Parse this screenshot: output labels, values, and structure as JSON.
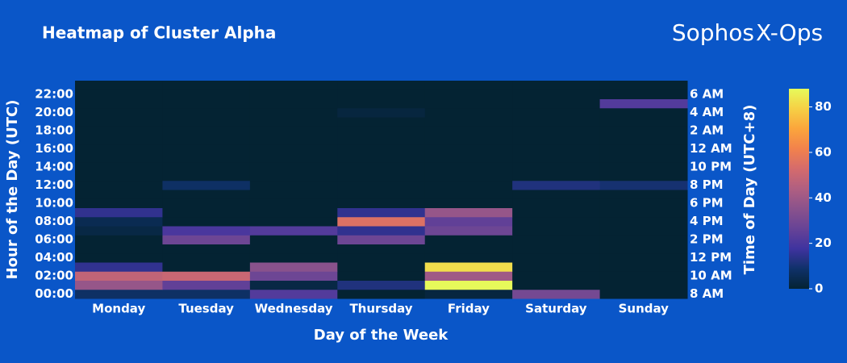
{
  "chart_data": {
    "type": "heatmap",
    "title": "Heatmap of Cluster Alpha",
    "logo": "Sophos",
    "logo_mark": "X-Ops",
    "x_label": "Day of the Week",
    "y_label": "Hour of the Day (UTC)",
    "y2_label": "Time of Day (UTC+8)",
    "categories": [
      "Monday",
      "Tuesday",
      "Wednesday",
      "Thursday",
      "Friday",
      "Saturday",
      "Sunday"
    ],
    "y": [
      0,
      1,
      2,
      3,
      4,
      5,
      6,
      7,
      8,
      9,
      10,
      11,
      12,
      13,
      14,
      15,
      16,
      17,
      18,
      19,
      20,
      21,
      22,
      23
    ],
    "z": [
      [
        8,
        8,
        22,
        0,
        2,
        30,
        0
      ],
      [
        38,
        25,
        3,
        12,
        88,
        0,
        0
      ],
      [
        48,
        50,
        28,
        0,
        40,
        0,
        0
      ],
      [
        15,
        0,
        35,
        0,
        82,
        0,
        0
      ],
      [
        0,
        0,
        0,
        0,
        0,
        0,
        0
      ],
      [
        0,
        0,
        0,
        0,
        0,
        0,
        0
      ],
      [
        0,
        28,
        0,
        28,
        0,
        0,
        0
      ],
      [
        3,
        20,
        22,
        15,
        28,
        0,
        0
      ],
      [
        5,
        0,
        0,
        55,
        25,
        0,
        0
      ],
      [
        15,
        0,
        0,
        15,
        38,
        0,
        0
      ],
      [
        0,
        0,
        0,
        0,
        0,
        0,
        0
      ],
      [
        0,
        0,
        0,
        0,
        0,
        0,
        0
      ],
      [
        0,
        8,
        0,
        0,
        0,
        12,
        10
      ],
      [
        0,
        0,
        0,
        0,
        0,
        0,
        0
      ],
      [
        0,
        0,
        0,
        0,
        0,
        0,
        0
      ],
      [
        0,
        0,
        0,
        0,
        0,
        0,
        0
      ],
      [
        0,
        0,
        0,
        0,
        0,
        0,
        0
      ],
      [
        0,
        0,
        0,
        0,
        0,
        0,
        0
      ],
      [
        0,
        0,
        0,
        0,
        0,
        0,
        0
      ],
      [
        0,
        0,
        0,
        0,
        0,
        0,
        0
      ],
      [
        0,
        0,
        0,
        2,
        0,
        0,
        0
      ],
      [
        0,
        0,
        0,
        0,
        0,
        0,
        22
      ],
      [
        0,
        0,
        0,
        0,
        0,
        0,
        0
      ],
      [
        0,
        0,
        0,
        0,
        0,
        0,
        0
      ]
    ],
    "ylim": [
      -0.5,
      23.5
    ],
    "yticks": [
      {
        "value": 0,
        "label": "00:00"
      },
      {
        "value": 2,
        "label": "02:00"
      },
      {
        "value": 4,
        "label": "04:00"
      },
      {
        "value": 6,
        "label": "06:00"
      },
      {
        "value": 8,
        "label": "08:00"
      },
      {
        "value": 10,
        "label": "10:00"
      },
      {
        "value": 12,
        "label": "12:00"
      },
      {
        "value": 14,
        "label": "14:00"
      },
      {
        "value": 16,
        "label": "16:00"
      },
      {
        "value": 18,
        "label": "18:00"
      },
      {
        "value": 20,
        "label": "20:00"
      },
      {
        "value": 22,
        "label": "22:00"
      }
    ],
    "y2lim": [
      -0.5,
      23.5
    ],
    "y2ticks": [
      {
        "value": 0,
        "label": "8 AM"
      },
      {
        "value": 2,
        "label": "10 AM"
      },
      {
        "value": 4,
        "label": "12 PM"
      },
      {
        "value": 6,
        "label": "2 PM"
      },
      {
        "value": 8,
        "label": "4 PM"
      },
      {
        "value": 10,
        "label": "6 PM"
      },
      {
        "value": 12,
        "label": "8 PM"
      },
      {
        "value": 14,
        "label": "10 PM"
      },
      {
        "value": 16,
        "label": "12 AM"
      },
      {
        "value": 18,
        "label": "2 AM"
      },
      {
        "value": 20,
        "label": "4 AM"
      },
      {
        "value": 22,
        "label": "6 AM"
      }
    ],
    "zlim": [
      0,
      88
    ],
    "zticks": [
      0,
      20,
      40,
      60,
      80
    ],
    "colorscale": [
      "#042333",
      "#0f3169",
      "#3f339f",
      "#674396",
      "#8a528c",
      "#b05f81",
      "#d56b6c",
      "#f2824c",
      "#fba53c",
      "#f6d045",
      "#e7fa5a"
    ]
  }
}
